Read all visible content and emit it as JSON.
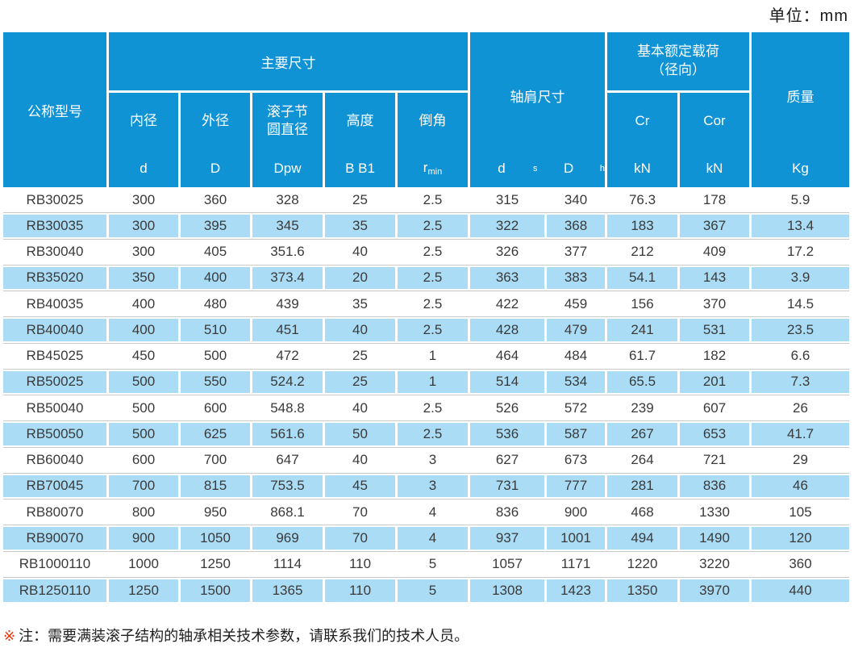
{
  "unit_label": "单位：mm",
  "colors": {
    "header_blue": "#0f93d5",
    "row_blue": "#aadcf5",
    "row_divider": "#c9c9c9",
    "note_marker_red": "#e8380d"
  },
  "table": {
    "header": {
      "model": "公称型号",
      "main_dims": "主要尺寸",
      "inner_label": "内径",
      "inner_sym": "d",
      "outer_label": "外径",
      "outer_sym": "D",
      "pitch_label1": "滚子节",
      "pitch_label2": "圆直径",
      "pitch_sym": "Dpw",
      "height_label": "高度",
      "height_sym": "B B1",
      "chamfer_label": "倒角",
      "chamfer_sym_base": "r",
      "chamfer_sym_sub": "min",
      "shoulder_dims": "轴肩尺寸",
      "ds_base": "d",
      "ds_sub": "s",
      "dh_base": "D",
      "dh_sub": "h",
      "load_line1": "基本额定载荷",
      "load_line2": "（径向）",
      "cr_label": "Cr",
      "cr_unit": "kN",
      "cor_label": "Cor",
      "cor_unit": "kN",
      "mass": "质量",
      "mass_sym": "Kg"
    },
    "rows": [
      [
        "RB30025",
        "300",
        "360",
        "328",
        "25",
        "2.5",
        "315",
        "340",
        "76.3",
        "178",
        "5.9"
      ],
      [
        "RB30035",
        "300",
        "395",
        "345",
        "35",
        "2.5",
        "322",
        "368",
        "183",
        "367",
        "13.4"
      ],
      [
        "RB30040",
        "300",
        "405",
        "351.6",
        "40",
        "2.5",
        "326",
        "377",
        "212",
        "409",
        "17.2"
      ],
      [
        "RB35020",
        "350",
        "400",
        "373.4",
        "20",
        "2.5",
        "363",
        "383",
        "54.1",
        "143",
        "3.9"
      ],
      [
        "RB40035",
        "400",
        "480",
        "439",
        "35",
        "2.5",
        "422",
        "459",
        "156",
        "370",
        "14.5"
      ],
      [
        "RB40040",
        "400",
        "510",
        "451",
        "40",
        "2.5",
        "428",
        "479",
        "241",
        "531",
        "23.5"
      ],
      [
        "RB45025",
        "450",
        "500",
        "472",
        "25",
        "1",
        "464",
        "484",
        "61.7",
        "182",
        "6.6"
      ],
      [
        "RB50025",
        "500",
        "550",
        "524.2",
        "25",
        "1",
        "514",
        "534",
        "65.5",
        "201",
        "7.3"
      ],
      [
        "RB50040",
        "500",
        "600",
        "548.8",
        "40",
        "2.5",
        "526",
        "572",
        "239",
        "607",
        "26"
      ],
      [
        "RB50050",
        "500",
        "625",
        "561.6",
        "50",
        "2.5",
        "536",
        "587",
        "267",
        "653",
        "41.7"
      ],
      [
        "RB60040",
        "600",
        "700",
        "647",
        "40",
        "3",
        "627",
        "673",
        "264",
        "721",
        "29"
      ],
      [
        "RB70045",
        "700",
        "815",
        "753.5",
        "45",
        "3",
        "731",
        "777",
        "281",
        "836",
        "46"
      ],
      [
        "RB80070",
        "800",
        "950",
        "868.1",
        "70",
        "4",
        "836",
        "900",
        "468",
        "1330",
        "105"
      ],
      [
        "RB90070",
        "900",
        "1050",
        "969",
        "70",
        "4",
        "937",
        "1001",
        "494",
        "1490",
        "120"
      ],
      [
        "RB1000110",
        "1000",
        "1250",
        "1114",
        "110",
        "5",
        "1057",
        "1171",
        "1220",
        "3220",
        "360"
      ],
      [
        "RB1250110",
        "1250",
        "1500",
        "1365",
        "110",
        "5",
        "1308",
        "1423",
        "1350",
        "3970",
        "440"
      ]
    ]
  },
  "note": {
    "marker": "※",
    "text": "注：需要满装滚子结构的轴承相关技术参数，请联系我们的技术人员。"
  }
}
